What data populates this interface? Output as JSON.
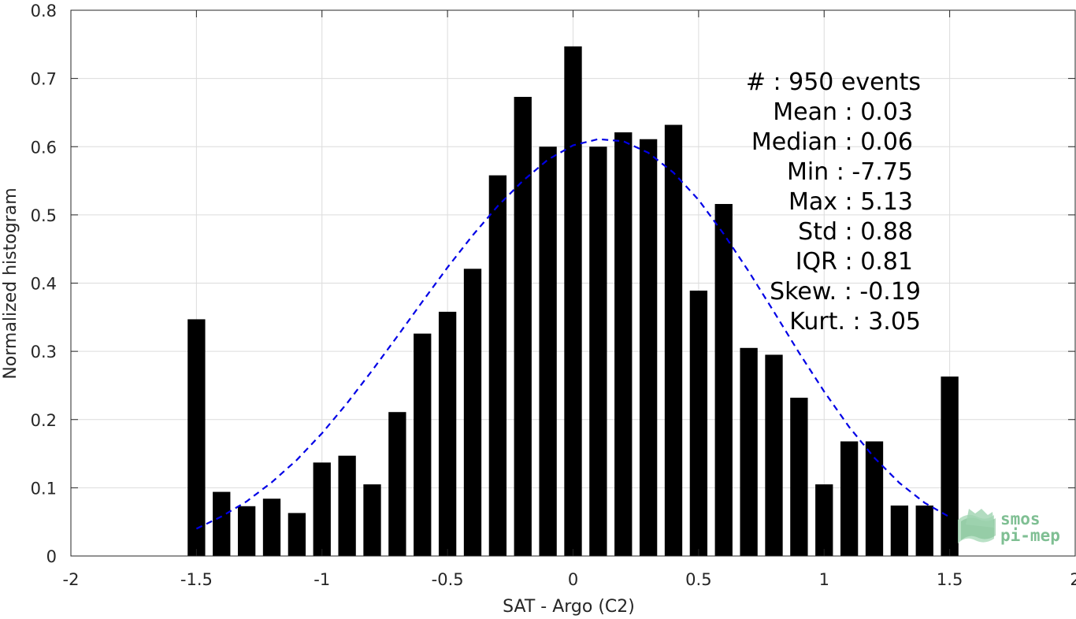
{
  "chart_data": {
    "type": "bar",
    "xlabel": "SAT - Argo (C2)",
    "ylabel": "Normalized histogram",
    "xlim": [
      -2,
      2
    ],
    "ylim": [
      0,
      0.8
    ],
    "xticks": [
      "-2",
      "-1.5",
      "-1",
      "-0.5",
      "0",
      "0.5",
      "1",
      "1.5",
      "2"
    ],
    "yticks": [
      "0",
      "0.1",
      "0.2",
      "0.3",
      "0.4",
      "0.5",
      "0.6",
      "0.7",
      "0.8"
    ],
    "grid": true,
    "bar_color": "#000000",
    "x": [
      -1.5,
      -1.4,
      -1.3,
      -1.2,
      -1.1,
      -1.0,
      -0.9,
      -0.8,
      -0.7,
      -0.6,
      -0.5,
      -0.4,
      -0.3,
      -0.2,
      -0.1,
      0.0,
      0.1,
      0.2,
      0.3,
      0.4,
      0.5,
      0.6,
      0.7,
      0.8,
      0.9,
      1.0,
      1.1,
      1.2,
      1.3,
      1.4,
      1.5
    ],
    "values": [
      0.347,
      0.094,
      0.073,
      0.084,
      0.063,
      0.137,
      0.147,
      0.105,
      0.211,
      0.326,
      0.358,
      0.421,
      0.558,
      0.673,
      0.6,
      0.747,
      0.6,
      0.621,
      0.611,
      0.632,
      0.389,
      0.516,
      0.305,
      0.295,
      0.232,
      0.105,
      0.168,
      0.168,
      0.074,
      0.074,
      0.263
    ],
    "fit_curve": {
      "style": "dashed",
      "color": "#0000e6",
      "x": [
        -1.5,
        -1.4,
        -1.3,
        -1.2,
        -1.1,
        -1.0,
        -0.9,
        -0.8,
        -0.7,
        -0.6,
        -0.5,
        -0.4,
        -0.3,
        -0.2,
        -0.1,
        0.0,
        0.1,
        0.2,
        0.3,
        0.4,
        0.5,
        0.6,
        0.7,
        0.8,
        0.9,
        1.0,
        1.1,
        1.2,
        1.3,
        1.4,
        1.5
      ],
      "y": [
        0.04,
        0.058,
        0.08,
        0.108,
        0.141,
        0.18,
        0.224,
        0.272,
        0.322,
        0.373,
        0.423,
        0.47,
        0.513,
        0.55,
        0.581,
        0.602,
        0.611,
        0.608,
        0.591,
        0.562,
        0.522,
        0.472,
        0.417,
        0.358,
        0.298,
        0.241,
        0.189,
        0.144,
        0.107,
        0.078,
        0.057
      ]
    }
  },
  "stats": [
    {
      "label": "#  : 950 events"
    },
    {
      "label": "Mean : 0.03"
    },
    {
      "label": "Median : 0.06"
    },
    {
      "label": "Min : -7.75"
    },
    {
      "label": "Max : 5.13"
    },
    {
      "label": "Std : 0.88"
    },
    {
      "label": "IQR : 0.81"
    },
    {
      "label": "Skew. : -0.19"
    },
    {
      "label": "Kurt. : 3.05"
    }
  ],
  "logo": {
    "line1": "smos",
    "line2": "pi-mep"
  }
}
